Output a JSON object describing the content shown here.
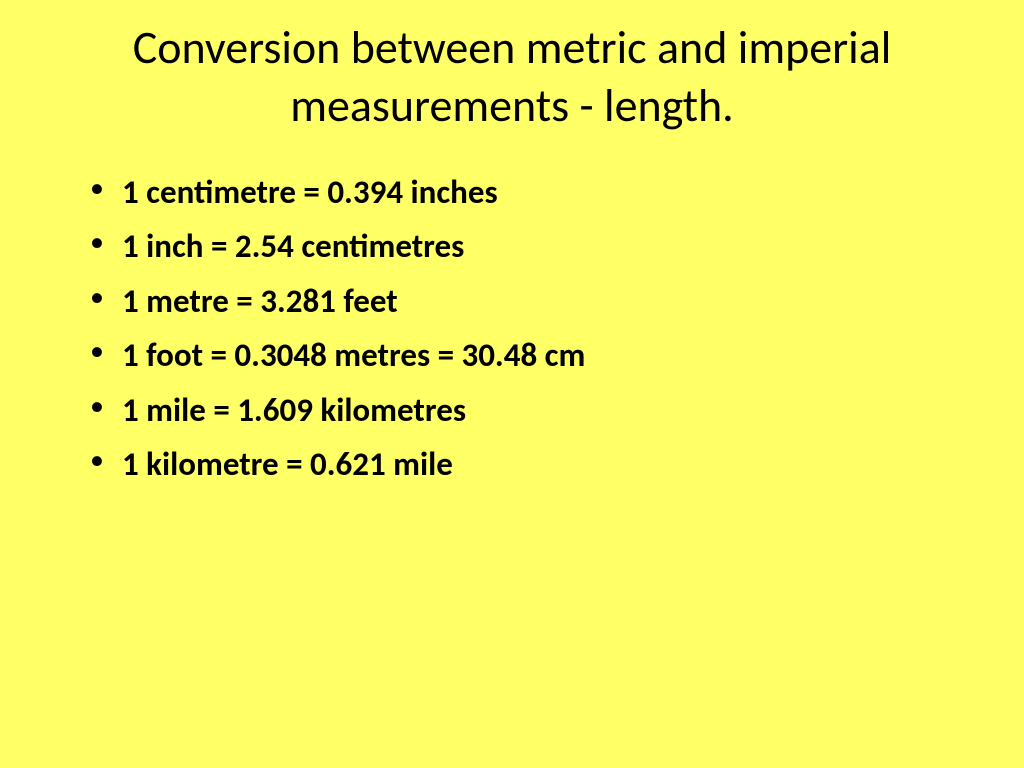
{
  "slide": {
    "title": "Conversion between metric and imperial measurements - length.",
    "bullets": [
      "1 centimetre = 0.394 inches",
      "1 inch = 2.54 centimetres",
      "1 metre = 3.281 feet",
      "1 foot = 0.3048 metres = 30.48 cm",
      "1 mile = 1.609 kilometres",
      "1 kilometre = 0.621 mile"
    ],
    "styling": {
      "background_color": "#ffff66",
      "text_color": "#000000",
      "title_fontsize": 46,
      "title_fontweight": 400,
      "bullet_fontsize": 33,
      "bullet_fontweight": "bold",
      "font_family": "Calibri"
    }
  }
}
